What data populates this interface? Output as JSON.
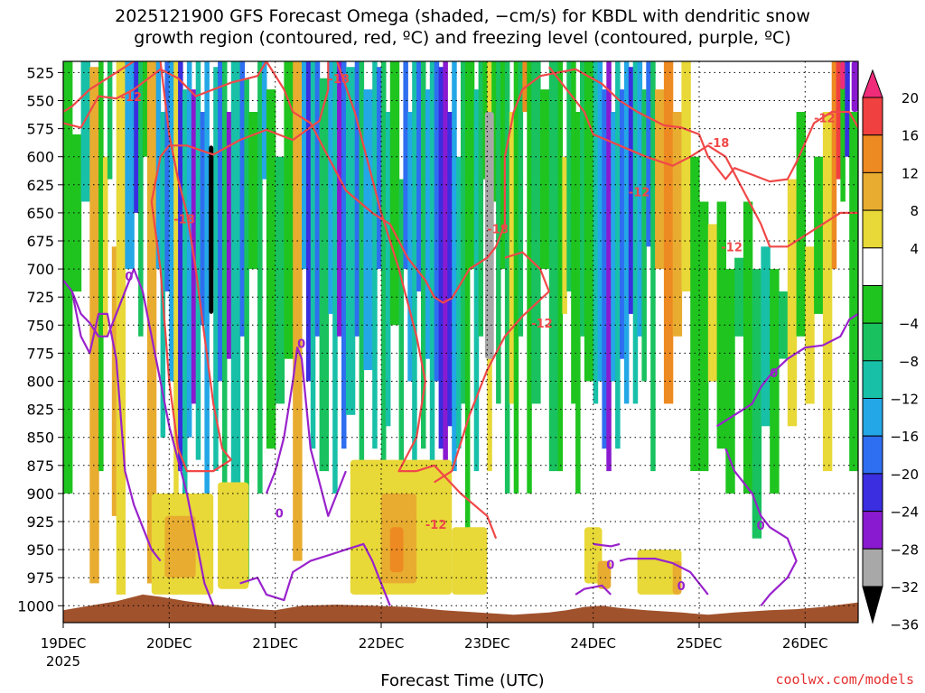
{
  "chart_data": {
    "type": "heatmap",
    "title_line1": "2025121900 GFS Forecast Omega (shaded, −cm/s) for KBDL with dendritic snow",
    "title_line2": "growth region (contoured, red, ºC) and freezing level (contoured, purple, ºC)",
    "xlabel": "Forecast Time (UTC)",
    "credit": "coolwx.com/models",
    "y_ticks": [
      "525",
      "550",
      "575",
      "600",
      "625",
      "650",
      "675",
      "700",
      "725",
      "750",
      "775",
      "800",
      "825",
      "850",
      "875",
      "900",
      "925",
      "950",
      "975",
      "1000"
    ],
    "y_range_hpa": [
      515,
      1015
    ],
    "x_ticks": [
      {
        "label": "19DEC",
        "hours": 0
      },
      {
        "label": "20DEC",
        "hours": 24
      },
      {
        "label": "21DEC",
        "hours": 48
      },
      {
        "label": "22DEC",
        "hours": 72
      },
      {
        "label": "23DEC",
        "hours": 96
      },
      {
        "label": "24DEC",
        "hours": 120
      },
      {
        "label": "25DEC",
        "hours": 144
      },
      {
        "label": "26DEC",
        "hours": 168
      }
    ],
    "x_year_label": "2025",
    "x_range_hours": [
      0,
      180
    ],
    "colorbar_labels": [
      "20",
      "16",
      "12",
      "8",
      "4",
      "−4",
      "−8",
      "−12",
      "−16",
      "−20",
      "−24",
      "−28",
      "−32",
      "−36"
    ],
    "colors": {
      "c20": "#f02c7a",
      "c16": "#f04040",
      "c12": "#ee8a22",
      "c8": "#e8ac30",
      "c4": "#e8d838",
      "c0": "#ffffff",
      "m4": "#1fc41f",
      "m8": "#19c25f",
      "m12": "#18c0a8",
      "m16": "#23a7e6",
      "m20": "#2e6ef0",
      "m24": "#3a2ee0",
      "m28": "#8a1ad0",
      "m32": "#a8a8a8",
      "m36": "#000000",
      "terrain": "#a0522d",
      "dgz": "#f04848",
      "freezing": "#9922cc"
    },
    "contour_labels": [
      {
        "text": "-18",
        "color": "dgz",
        "hours": 60,
        "hpa": 531
      },
      {
        "text": "-12",
        "color": "dgz",
        "hours": 13,
        "hpa": 547
      },
      {
        "text": "-18",
        "color": "dgz",
        "hours": 146,
        "hpa": 588
      },
      {
        "text": "-12",
        "color": "dgz",
        "hours": 170,
        "hpa": 566
      },
      {
        "text": "-12",
        "color": "dgz",
        "hours": 128,
        "hpa": 632
      },
      {
        "text": "-18",
        "color": "dgz",
        "hours": 25,
        "hpa": 656
      },
      {
        "text": "-18",
        "color": "dgz",
        "hours": 96,
        "hpa": 665
      },
      {
        "text": "-12",
        "color": "dgz",
        "hours": 149,
        "hpa": 681
      },
      {
        "text": "-12",
        "color": "dgz",
        "hours": 106,
        "hpa": 749
      },
      {
        "text": "-12",
        "color": "dgz",
        "hours": 82,
        "hpa": 928
      },
      {
        "text": "0",
        "color": "freezing",
        "hours": 14,
        "hpa": 707
      },
      {
        "text": "0",
        "color": "freezing",
        "hours": 53,
        "hpa": 767
      },
      {
        "text": "0",
        "color": "freezing",
        "hours": 48,
        "hpa": 918
      },
      {
        "text": "0",
        "color": "freezing",
        "hours": 160,
        "hpa": 793
      },
      {
        "text": "0",
        "color": "freezing",
        "hours": 157,
        "hpa": 929
      },
      {
        "text": "0",
        "color": "freezing",
        "hours": 123,
        "hpa": 964
      },
      {
        "text": "0",
        "color": "freezing",
        "hours": 139,
        "hpa": 983
      }
    ]
  }
}
